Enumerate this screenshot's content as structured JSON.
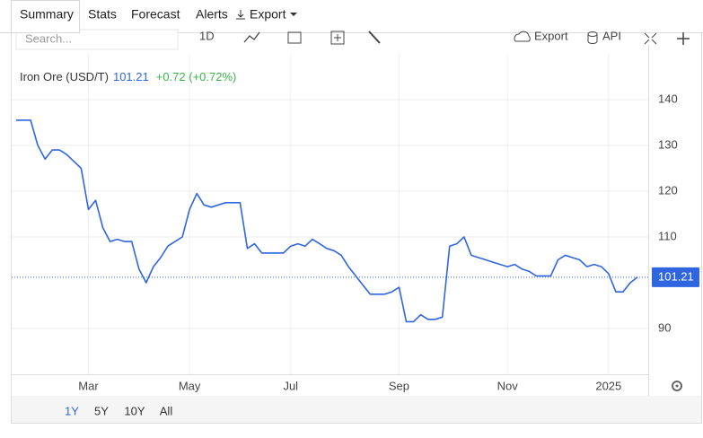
{
  "tabs": [
    "Summary",
    "Stats",
    "Forecast",
    "Alerts",
    "Export"
  ],
  "active_tab": 0,
  "toolbar": {
    "search_placeholder": "Search...",
    "interval": "1D",
    "export": "Export",
    "api": "API"
  },
  "chart_data": {
    "type": "line",
    "title": "Iron Ore (USD/T)",
    "change": "+0.72 (+0.72%)",
    "categories": [
      null,
      null,
      null,
      null,
      null,
      null,
      null,
      null,
      null,
      null,
      "Mar",
      null,
      null,
      null,
      null,
      null,
      null,
      null,
      null,
      null,
      null,
      null,
      null,
      null,
      "May",
      null,
      null,
      null,
      null,
      null,
      null,
      null,
      null,
      null,
      null,
      null,
      null,
      null,
      "Jul",
      null,
      null,
      null,
      null,
      null,
      null,
      null,
      null,
      null,
      null,
      null,
      null,
      null,
      null,
      "Sep",
      null,
      null,
      null,
      null,
      null,
      null,
      null,
      null,
      null,
      null,
      null,
      null,
      null,
      null,
      "Nov",
      null,
      null,
      null,
      null,
      null,
      null,
      null,
      null,
      null,
      null,
      null,
      null,
      null,
      "2025",
      null,
      null,
      null,
      null
    ],
    "series": [
      {
        "color": "#2f66e0",
        "values": [
          135.5,
          135.5,
          135.5,
          130,
          127,
          129,
          129,
          128,
          126.5,
          125,
          116,
          118,
          112,
          109,
          109.5,
          109,
          109,
          103,
          100,
          103.5,
          105.5,
          108,
          109,
          110,
          116,
          119.5,
          117,
          116.5,
          117,
          117.5,
          117.5,
          117.5,
          107.5,
          108.5,
          106.5,
          106.5,
          106.5,
          106.5,
          108,
          108.5,
          108,
          109.5,
          108.5,
          107.5,
          107,
          106,
          103.5,
          101.5,
          99.5,
          97.5,
          97.5,
          97.5,
          98,
          99,
          91.5,
          91.5,
          93,
          92,
          92,
          92.5,
          108,
          108.5,
          110,
          106,
          105.5,
          105,
          104.5,
          104,
          103.5,
          104,
          103,
          102.5,
          101.5,
          101.5,
          101.5,
          105,
          106,
          105.5,
          105,
          103.5,
          104,
          103.5,
          102,
          98,
          98,
          100,
          101.21
        ]
      }
    ],
    "ylim": [
      80,
      150
    ],
    "yticks": [
      90,
      110,
      120,
      130,
      140
    ],
    "grid": true,
    "last_value_line": true
  },
  "ranges": [
    "1Y",
    "5Y",
    "10Y",
    "All"
  ],
  "active_range": 0
}
